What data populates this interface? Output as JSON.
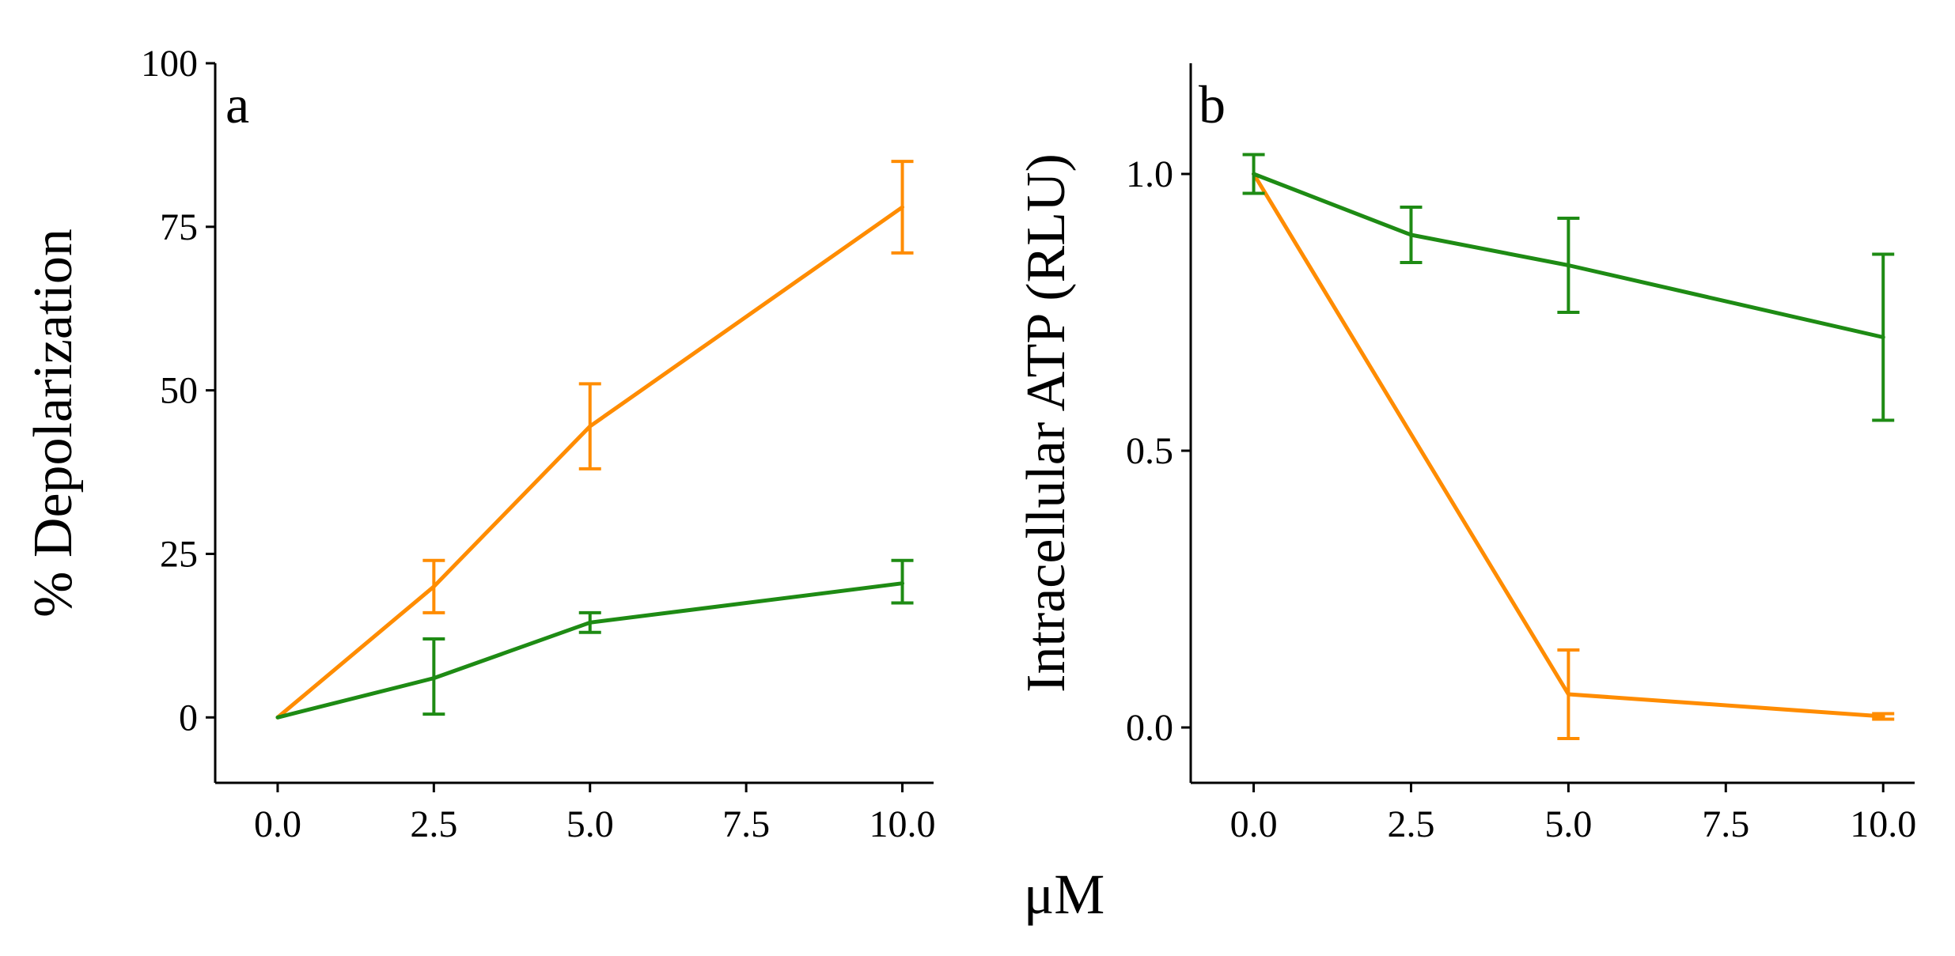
{
  "shared_xlabel": "μM",
  "chart_data": [
    {
      "type": "line",
      "panel": "a",
      "title": "",
      "xlabel": "μM",
      "ylabel": "% Depolarization",
      "xlim": [
        -1,
        10.5
      ],
      "ylim": [
        -10,
        100
      ],
      "xticks": [
        0.0,
        2.5,
        5.0,
        7.5,
        10.0
      ],
      "xtick_labels": [
        "0.0",
        "2.5",
        "5.0",
        "7.5",
        "10.0"
      ],
      "yticks": [
        0,
        25,
        50,
        75,
        100
      ],
      "ytick_labels": [
        "0",
        "25",
        "50",
        "75",
        "100"
      ],
      "grid": false,
      "x": [
        0,
        2.5,
        5,
        10
      ],
      "series": [
        {
          "name": "orange",
          "color": "#FF8C00",
          "values": [
            0,
            20,
            44.5,
            78
          ],
          "error_low": [
            null,
            16,
            38,
            71
          ],
          "error_high": [
            null,
            24,
            51,
            85
          ]
        },
        {
          "name": "green",
          "color": "#1E8B14",
          "values": [
            0,
            6,
            14.5,
            20.5
          ],
          "error_low": [
            null,
            0.5,
            13,
            17.5
          ],
          "error_high": [
            null,
            12,
            16,
            24
          ]
        }
      ]
    },
    {
      "type": "line",
      "panel": "b",
      "title": "",
      "xlabel": "μM",
      "ylabel": "Intracellular ATP (RLU)",
      "xlim": [
        -1,
        10.5
      ],
      "ylim": [
        -0.1,
        1.2
      ],
      "xticks": [
        0.0,
        2.5,
        5.0,
        7.5,
        10.0
      ],
      "xtick_labels": [
        "0.0",
        "2.5",
        "5.0",
        "7.5",
        "10.0"
      ],
      "yticks": [
        0.0,
        0.5,
        1.0
      ],
      "ytick_labels": [
        "0.0",
        "0.5",
        "1.0"
      ],
      "grid": false,
      "x": [
        0,
        2.5,
        5,
        10
      ],
      "series": [
        {
          "name": "orange",
          "color": "#FF8C00",
          "values": [
            1.0,
            null,
            0.06,
            0.02
          ],
          "error_low": [
            null,
            null,
            -0.02,
            0.015
          ],
          "error_high": [
            null,
            null,
            0.14,
            0.025
          ]
        },
        {
          "name": "green",
          "color": "#1E8B14",
          "values": [
            1.0,
            0.89,
            0.835,
            0.705
          ],
          "error_low": [
            0.965,
            0.84,
            0.75,
            0.555
          ],
          "error_high": [
            1.035,
            0.94,
            0.92,
            0.855
          ]
        }
      ]
    }
  ]
}
